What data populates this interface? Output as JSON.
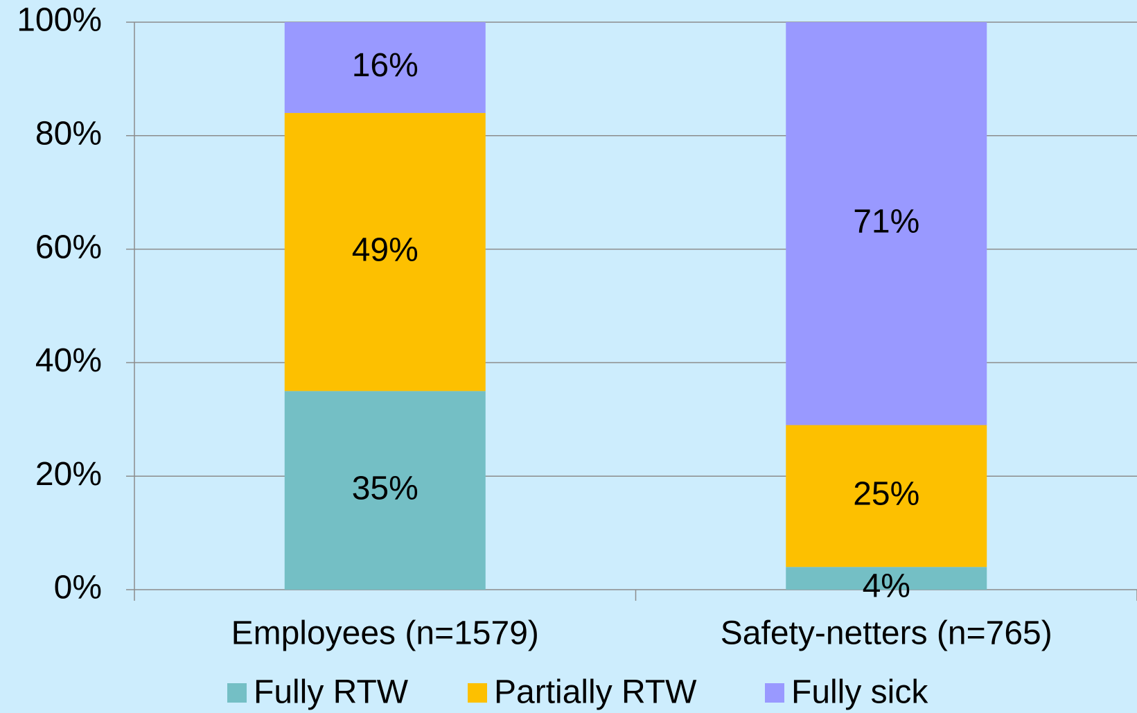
{
  "chart_data": {
    "type": "stacked-bar",
    "categories": [
      "Employees (n=1579)",
      "Safety-netters (n=765)"
    ],
    "series": [
      {
        "name": "Fully RTW",
        "color": "#74bfc5",
        "values": [
          35,
          4
        ],
        "value_labels": [
          "35%",
          "4%"
        ]
      },
      {
        "name": "Partially RTW",
        "color": "#fdc000",
        "values": [
          49,
          25
        ],
        "value_labels": [
          "49%",
          "25%"
        ]
      },
      {
        "name": "Fully sick",
        "color": "#9999ff",
        "values": [
          16,
          71
        ],
        "value_labels": [
          "16%",
          "71%"
        ]
      }
    ],
    "ylim": [
      0,
      100
    ],
    "yticks": [
      {
        "value": 0,
        "label": "0%"
      },
      {
        "value": 20,
        "label": "20%"
      },
      {
        "value": 40,
        "label": "40%"
      },
      {
        "value": 60,
        "label": "60%"
      },
      {
        "value": 80,
        "label": "80%"
      },
      {
        "value": 100,
        "label": "100%"
      }
    ],
    "grid": true,
    "legend": "bottom"
  }
}
